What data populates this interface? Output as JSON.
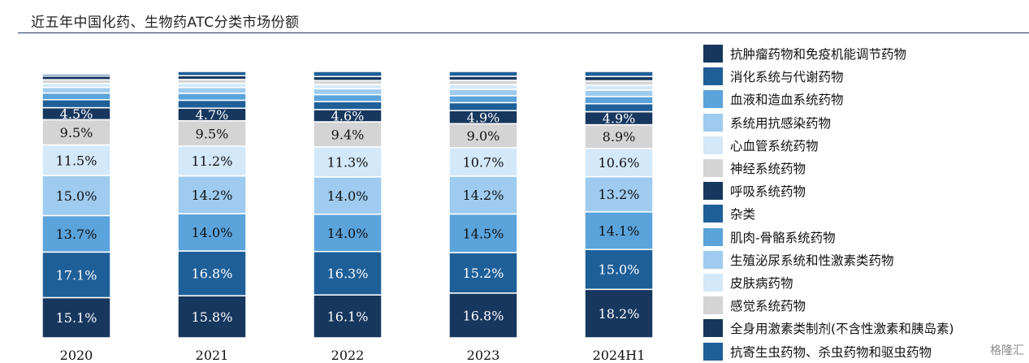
{
  "chart_data": {
    "type": "bar",
    "stacked": true,
    "title": "近五年中国化药、生物药ATC分类市场份额",
    "categories": [
      "2020",
      "2021",
      "2022",
      "2023",
      "2024H1"
    ],
    "ylim": [
      0,
      100
    ],
    "unit": "%",
    "legend_position": "right",
    "series": [
      {
        "name": "抗肿瘤药物和免疫机能调节药物",
        "color": "#17375e",
        "values": [
          15.1,
          15.8,
          16.1,
          16.8,
          18.2
        ]
      },
      {
        "name": "消化系统与代谢药物",
        "color": "#1f5f98",
        "values": [
          17.1,
          16.8,
          16.3,
          15.2,
          15.0
        ]
      },
      {
        "name": "血液和造血系统药物",
        "color": "#5ba3db",
        "values": [
          13.7,
          14.0,
          14.0,
          14.5,
          14.1
        ]
      },
      {
        "name": "系统用抗感染药物",
        "color": "#9ecbef",
        "values": [
          15.0,
          14.2,
          14.0,
          14.2,
          13.2
        ]
      },
      {
        "name": "心血管系统药物",
        "color": "#d3e8f8",
        "values": [
          11.5,
          11.2,
          11.3,
          10.7,
          10.6
        ]
      },
      {
        "name": "神经系统药物",
        "color": "#d4d4d4",
        "values": [
          9.5,
          9.5,
          9.4,
          9.0,
          8.9
        ]
      },
      {
        "name": "呼吸系统药物",
        "color": "#17375e",
        "values": [
          4.5,
          4.7,
          4.6,
          4.9,
          4.9
        ]
      },
      {
        "name": "杂类",
        "color": "#1f5f98",
        "values": [
          3.0,
          3.0,
          3.0,
          3.0,
          3.0
        ]
      },
      {
        "name": "肌肉-骨骼系统药物",
        "color": "#5ba3db",
        "values": [
          2.5,
          2.6,
          2.6,
          2.6,
          2.7
        ]
      },
      {
        "name": "生殖泌尿系统和性激素类药物",
        "color": "#9ecbef",
        "values": [
          2.1,
          2.2,
          2.2,
          2.4,
          2.4
        ]
      },
      {
        "name": "皮肤病药物",
        "color": "#d3e8f8",
        "values": [
          1.5,
          1.6,
          1.6,
          1.8,
          1.9
        ]
      },
      {
        "name": "感觉系统药物",
        "color": "#d4d4d4",
        "values": [
          1.4,
          1.4,
          1.5,
          1.6,
          1.6
        ]
      },
      {
        "name": "全身用激素类制剂(不含性激素和胰岛素)",
        "color": "#17375e",
        "values": [
          1.4,
          1.4,
          1.5,
          1.5,
          1.6
        ]
      },
      {
        "name": "抗寄生虫药物、杀虫药物和驱虫药物",
        "color": "#1f5f98",
        "values": [
          0.7,
          1.6,
          1.9,
          1.8,
          1.9
        ]
      }
    ],
    "labeled_series_count": 7
  },
  "watermark_text": "格隆汇"
}
